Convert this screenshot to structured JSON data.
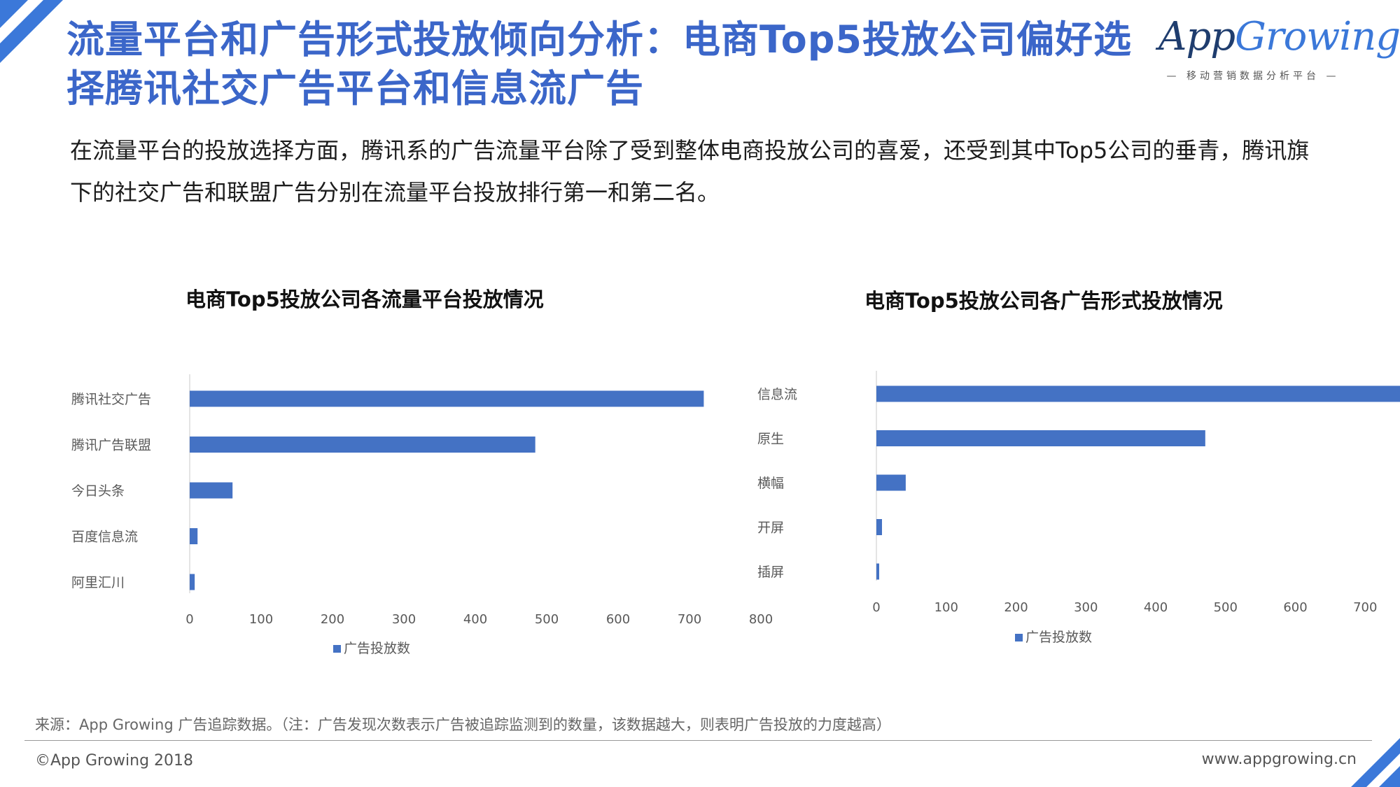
{
  "title": "流量平台和广告形式投放倾向分析：电商Top5投放公司偏好选择腾讯社交广告平台和信息流广告",
  "logo": {
    "word_a": "App",
    "word_b": "Growing",
    "tagline": "— 移动营销数据分析平台 —"
  },
  "intro": "在流量平台的投放选择方面，腾讯系的广告流量平台除了受到整体电商投放公司的喜爱，还受到其中Top5公司的垂青，腾讯旗下的社交广告和联盟广告分别在流量平台投放排行第一和第二名。",
  "colors": {
    "accent": "#3b66c9",
    "bar": "#4472c4"
  },
  "chart_data": [
    {
      "type": "bar",
      "orientation": "horizontal",
      "title": "电商Top5投放公司各流量平台投放情况",
      "categories": [
        "腾讯社交广告",
        "腾讯广告联盟",
        "今日头条",
        "百度信息流",
        "阿里汇川"
      ],
      "series": [
        {
          "name": "广告投放数",
          "values": [
            720,
            484,
            60,
            11,
            7
          ]
        }
      ],
      "xlim": [
        0,
        800
      ],
      "xticks": [
        0,
        100,
        200,
        300,
        400,
        500,
        600,
        700,
        800
      ],
      "legend": "bottom",
      "grid": false
    },
    {
      "type": "bar",
      "orientation": "horizontal",
      "title": "电商Top5投放公司各广告形式投放情况",
      "categories": [
        "信息流",
        "原生",
        "横幅",
        "开屏",
        "插屏"
      ],
      "series": [
        {
          "name": "广告投放数",
          "values": [
            755,
            471,
            42,
            8,
            4
          ]
        }
      ],
      "xlim": [
        0,
        800
      ],
      "xticks": [
        0,
        100,
        200,
        300,
        400,
        500,
        600,
        700,
        800
      ],
      "legend": "bottom",
      "grid": false
    }
  ],
  "source": "来源：App Growing 广告追踪数据。（注：广告发现次数表示广告被追踪监测到的数量，该数据越大，则表明广告投放的力度越高）",
  "copyright": "©App Growing 2018",
  "website": "www.appgrowing.cn"
}
